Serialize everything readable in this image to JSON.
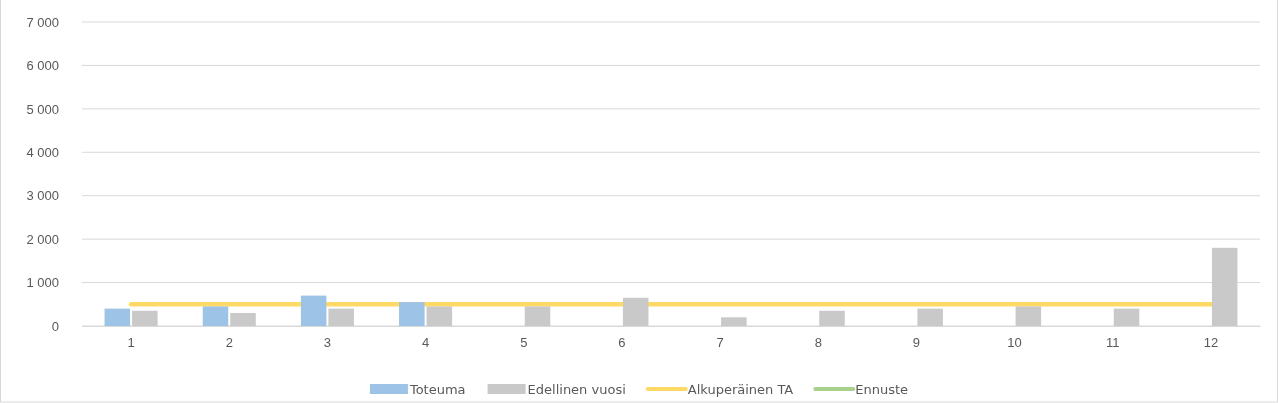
{
  "chart_data": {
    "type": "bar",
    "categories": [
      "1",
      "2",
      "3",
      "4",
      "5",
      "6",
      "7",
      "8",
      "9",
      "10",
      "11",
      "12"
    ],
    "series": [
      {
        "name": "Toteuma",
        "color": "#9dc3e6",
        "values": [
          400,
          450,
          700,
          550,
          null,
          null,
          null,
          null,
          null,
          null,
          null,
          null
        ]
      },
      {
        "name": "Edellinen vuosi",
        "color": "#c9c9c9",
        "values": [
          350,
          300,
          400,
          450,
          450,
          650,
          200,
          350,
          400,
          450,
          400,
          1800
        ]
      },
      {
        "name": "Alkuperäinen TA",
        "type": "line",
        "color": "#ffd966",
        "values": [
          500,
          500,
          500,
          500,
          500,
          500,
          500,
          500,
          500,
          500,
          500,
          500
        ]
      },
      {
        "name": "Ennuste",
        "type": "line",
        "color": "#a9d18e",
        "values": [
          null,
          null,
          null,
          null,
          null,
          null,
          null,
          null,
          null,
          null,
          null,
          null
        ]
      }
    ],
    "ylim": [
      0,
      7000
    ],
    "yticks": [
      {
        "value": 0,
        "label": "0"
      },
      {
        "value": 1000,
        "label": "1 000"
      },
      {
        "value": 2000,
        "label": "2 000"
      },
      {
        "value": 3000,
        "label": "3 000"
      },
      {
        "value": 4000,
        "label": "4 000"
      },
      {
        "value": 5000,
        "label": "5 000"
      },
      {
        "value": 6000,
        "label": "6 000"
      },
      {
        "value": 7000,
        "label": "7 000"
      }
    ],
    "grid": "y",
    "legend": "bottom",
    "line_style": "solid"
  }
}
